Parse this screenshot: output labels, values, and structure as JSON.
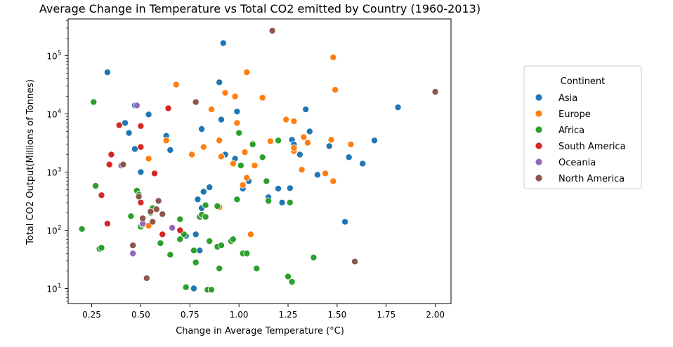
{
  "chart_data": {
    "type": "scatter",
    "title": "Average Change in Temperature vs Total CO2 emitted by Country (1960-2013)",
    "xlabel": "Change in Average Temperature (°C)",
    "ylabel": "Total CO2 Output(Millions of Tonnes)",
    "xlim": [
      0.13,
      2.08
    ],
    "ylim": [
      5.5,
      430000
    ],
    "yscale": "log",
    "x_ticks": [
      {
        "value": 0.25,
        "label": "0.25"
      },
      {
        "value": 0.5,
        "label": "0.50"
      },
      {
        "value": 0.75,
        "label": "0.75"
      },
      {
        "value": 1.0,
        "label": "1.00"
      },
      {
        "value": 1.25,
        "label": "1.25"
      },
      {
        "value": 1.5,
        "label": "1.50"
      },
      {
        "value": 1.75,
        "label": "1.75"
      },
      {
        "value": 2.0,
        "label": "2.00"
      }
    ],
    "y_ticks": [
      {
        "value": 10,
        "base": "10",
        "exp": "1"
      },
      {
        "value": 100,
        "base": "10",
        "exp": "2"
      },
      {
        "value": 1000,
        "base": "10",
        "exp": "3"
      },
      {
        "value": 10000,
        "base": "10",
        "exp": "4"
      },
      {
        "value": 100000,
        "base": "10",
        "exp": "5"
      }
    ],
    "grid": false,
    "legend": {
      "title": "Continent",
      "placement": "outside-right"
    },
    "series": [
      {
        "name": "Asia",
        "color": "#1f77b4",
        "points": [
          [
            0.33,
            52000
          ],
          [
            0.42,
            7000
          ],
          [
            0.44,
            4700
          ],
          [
            0.47,
            14000
          ],
          [
            0.47,
            2500
          ],
          [
            0.5,
            1000
          ],
          [
            0.54,
            9800
          ],
          [
            0.63,
            4200
          ],
          [
            0.65,
            2400
          ],
          [
            0.73,
            80
          ],
          [
            0.77,
            10
          ],
          [
            0.78,
            85
          ],
          [
            0.79,
            340
          ],
          [
            0.8,
            45
          ],
          [
            0.81,
            5500
          ],
          [
            0.81,
            240
          ],
          [
            0.82,
            460
          ],
          [
            0.85,
            550
          ],
          [
            0.9,
            35000
          ],
          [
            0.91,
            8000
          ],
          [
            0.92,
            165000
          ],
          [
            0.93,
            2000
          ],
          [
            0.98,
            1700
          ],
          [
            0.99,
            11000
          ],
          [
            1.02,
            520
          ],
          [
            1.05,
            700
          ],
          [
            1.15,
            370
          ],
          [
            1.2,
            520
          ],
          [
            1.22,
            300
          ],
          [
            1.26,
            530
          ],
          [
            1.27,
            3600
          ],
          [
            1.28,
            3000
          ],
          [
            1.31,
            2000
          ],
          [
            1.34,
            12000
          ],
          [
            1.36,
            5000
          ],
          [
            1.4,
            900
          ],
          [
            1.46,
            2800
          ],
          [
            1.54,
            140
          ],
          [
            1.56,
            1800
          ],
          [
            1.63,
            1400
          ],
          [
            1.69,
            3500
          ],
          [
            1.81,
            13000
          ]
        ]
      },
      {
        "name": "Europe",
        "color": "#ff7f0e",
        "points": [
          [
            0.54,
            120
          ],
          [
            0.54,
            1700
          ],
          [
            0.63,
            3500
          ],
          [
            0.68,
            32000
          ],
          [
            0.76,
            2000
          ],
          [
            0.82,
            2700
          ],
          [
            0.86,
            12000
          ],
          [
            0.9,
            3500
          ],
          [
            0.91,
            1850
          ],
          [
            0.9,
            250
          ],
          [
            0.93,
            23000
          ],
          [
            0.97,
            1400
          ],
          [
            0.98,
            20000
          ],
          [
            0.99,
            7000
          ],
          [
            1.02,
            600
          ],
          [
            1.03,
            2200
          ],
          [
            1.04,
            800
          ],
          [
            1.04,
            52000
          ],
          [
            1.06,
            85
          ],
          [
            1.07,
            3100
          ],
          [
            1.08,
            1300
          ],
          [
            1.12,
            19000
          ],
          [
            1.16,
            3400
          ],
          [
            1.24,
            8000
          ],
          [
            1.28,
            2300
          ],
          [
            1.28,
            2600
          ],
          [
            1.28,
            7500
          ],
          [
            1.32,
            1100
          ],
          [
            1.33,
            4000
          ],
          [
            1.35,
            3200
          ],
          [
            1.44,
            950
          ],
          [
            1.47,
            3600
          ],
          [
            1.48,
            700
          ],
          [
            1.48,
            94000
          ],
          [
            1.49,
            26000
          ],
          [
            1.57,
            3000
          ]
        ]
      },
      {
        "name": "Africa",
        "color": "#2ca02c",
        "points": [
          [
            0.2,
            105
          ],
          [
            0.26,
            16000
          ],
          [
            0.27,
            580
          ],
          [
            0.29,
            48
          ],
          [
            0.3,
            50
          ],
          [
            0.45,
            175
          ],
          [
            0.48,
            480
          ],
          [
            0.49,
            410
          ],
          [
            0.5,
            115
          ],
          [
            0.51,
            125
          ],
          [
            0.55,
            200
          ],
          [
            0.56,
            240
          ],
          [
            0.6,
            60
          ],
          [
            0.65,
            38
          ],
          [
            0.7,
            155
          ],
          [
            0.7,
            70
          ],
          [
            0.72,
            85
          ],
          [
            0.73,
            10.5
          ],
          [
            0.77,
            45
          ],
          [
            0.78,
            28
          ],
          [
            0.8,
            170
          ],
          [
            0.81,
            185
          ],
          [
            0.83,
            270
          ],
          [
            0.83,
            170
          ],
          [
            0.84,
            9.5
          ],
          [
            0.85,
            65
          ],
          [
            0.86,
            9.5
          ],
          [
            0.89,
            260
          ],
          [
            0.89,
            52
          ],
          [
            0.9,
            22
          ],
          [
            0.91,
            55
          ],
          [
            0.96,
            65
          ],
          [
            0.97,
            70
          ],
          [
            0.99,
            340
          ],
          [
            1.0,
            4700
          ],
          [
            1.01,
            1300
          ],
          [
            1.02,
            40
          ],
          [
            1.04,
            40
          ],
          [
            1.07,
            3000
          ],
          [
            1.09,
            22
          ],
          [
            1.12,
            1800
          ],
          [
            1.14,
            700
          ],
          [
            1.15,
            320
          ],
          [
            1.2,
            3500
          ],
          [
            1.25,
            16
          ],
          [
            1.26,
            300
          ],
          [
            1.27,
            13
          ],
          [
            1.38,
            34
          ]
        ]
      },
      {
        "name": "South America",
        "color": "#d62728",
        "points": [
          [
            0.3,
            400
          ],
          [
            0.33,
            130
          ],
          [
            0.34,
            1350
          ],
          [
            0.35,
            2000
          ],
          [
            0.39,
            6400
          ],
          [
            0.5,
            300
          ],
          [
            0.5,
            6200
          ],
          [
            0.5,
            2700
          ],
          [
            0.57,
            950
          ],
          [
            0.61,
            85
          ],
          [
            0.64,
            12500
          ],
          [
            0.7,
            100
          ]
        ]
      },
      {
        "name": "Oceania",
        "color": "#9467bd",
        "points": [
          [
            0.4,
            1300
          ],
          [
            0.46,
            40
          ],
          [
            0.48,
            14000
          ],
          [
            0.51,
            130
          ],
          [
            0.66,
            110
          ]
        ]
      },
      {
        "name": "North America",
        "color": "#8c564b",
        "points": [
          [
            0.41,
            1350
          ],
          [
            0.46,
            55
          ],
          [
            0.49,
            380
          ],
          [
            0.51,
            160
          ],
          [
            0.53,
            15
          ],
          [
            0.55,
            210
          ],
          [
            0.56,
            140
          ],
          [
            0.58,
            230
          ],
          [
            0.59,
            320
          ],
          [
            0.61,
            190
          ],
          [
            0.78,
            16000
          ],
          [
            1.17,
            270000
          ],
          [
            1.59,
            29
          ],
          [
            2.0,
            24000
          ]
        ]
      }
    ]
  }
}
